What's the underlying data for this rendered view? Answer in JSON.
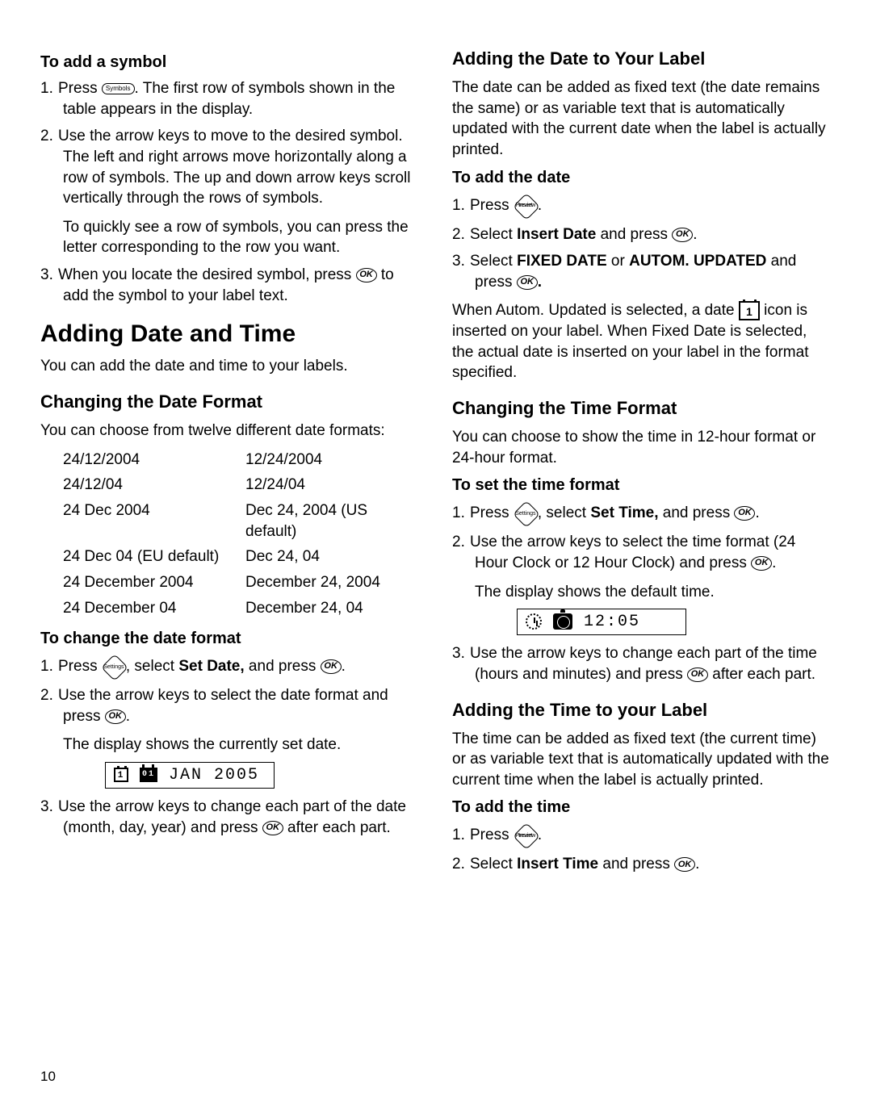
{
  "left": {
    "symbol_heading": "To add a symbol",
    "symbol_steps": [
      {
        "n": "1.",
        "pre": "Press ",
        "btn": "Symbols",
        "post": ". The first row of symbols shown in the table appears in the display."
      },
      {
        "n": "2.",
        "text": "Use the arrow keys to move to the desired symbol. The left and right arrows move horizontally along a row of symbols. The up and down arrow keys scroll vertically through the rows of symbols."
      },
      {
        "indent": "To quickly see a row of symbols, you can press the letter corresponding to the row you want."
      },
      {
        "n": "3.",
        "pre": "When you locate the desired symbol, press ",
        "ok": true,
        "post": " to add the symbol to your label text."
      }
    ],
    "adding_dt_heading": "Adding Date and Time",
    "adding_dt_intro": "You can add the date and time to your labels.",
    "change_df_heading": "Changing the Date Format",
    "change_df_intro": "You can choose from twelve different date formats:",
    "date_formats": [
      [
        "24/12/2004",
        "12/24/2004"
      ],
      [
        "24/12/04",
        "12/24/04"
      ],
      [
        "24 Dec 2004",
        "Dec 24, 2004 (US default)"
      ],
      [
        "24 Dec 04 (EU default)",
        "Dec 24, 04"
      ],
      [
        "24 December 2004",
        "December 24, 2004"
      ],
      [
        "24 December 04",
        "December 24, 04"
      ]
    ],
    "change_df_sub": "To change the date format",
    "change_df_steps": {
      "s1_pre": "Press ",
      "s1_btn": "Settings",
      "s1_mid": ", select ",
      "s1_bold": "Set Date,",
      "s1_post": " and press ",
      "s2_pre": "Use the arrow keys to select the date format and press ",
      "s2_after": "The display shows the currently set date.",
      "lcd": "JAN 2005",
      "lcd_d1": "1",
      "lcd_d2": "01",
      "s3_pre": "Use the arrow keys to change each part of the date (month, day, year) and press ",
      "s3_post": " after each part."
    }
  },
  "right": {
    "add_date_label_heading": "Adding the Date to Your Label",
    "add_date_label_intro": "The date can be added as fixed text (the date remains the same) or as variable text that is automatically updated with the current date when the label is actually printed.",
    "add_date_sub": "To add the date",
    "add_date_steps": {
      "s1_pre": "Press ",
      "s1_btn_l1": "Preview",
      "s1_btn_l2": "Insert",
      "s2_pre": "Select ",
      "s2_bold": "Insert Date",
      "s2_mid": " and press ",
      "s3_pre": "Select ",
      "s3_b1": "FIXED DATE",
      "s3_or": " or ",
      "s3_b2": "AUTOM. UPDATED",
      "s3_post": " and press "
    },
    "autom_pre": "When Autom. Updated is selected, a date ",
    "autom_icon": "1",
    "autom_post": " icon is inserted on your label. When Fixed Date is selected, the actual date is inserted on your label in the format specified.",
    "change_tf_heading": "Changing the Time Format",
    "change_tf_intro": "You can choose to show the time in 12-hour format or 24-hour format.",
    "set_tf_sub": "To set the time format",
    "set_tf_steps": {
      "s1_pre": "Press ",
      "s1_btn": "Settings",
      "s1_mid": ", select ",
      "s1_bold": "Set Time,",
      "s1_post": " and press ",
      "s2_pre": "Use the arrow keys to select the time format (24 Hour Clock or 12 Hour Clock) and press ",
      "s2_after": "The display shows the default time.",
      "lcd": "12:05",
      "s3_pre": "Use the arrow keys to change each part of the time (hours and minutes) and press ",
      "s3_post": " after each part."
    },
    "add_time_label_heading": "Adding the Time to your Label",
    "add_time_label_intro": "The time can be added as fixed text (the current time) or as variable text that is automatically updated with the current time when the label is actually printed.",
    "add_time_sub": "To add the time",
    "add_time_steps": {
      "s1_pre": "Press ",
      "s1_btn_l1": "Preview",
      "s1_btn_l2": "Insert",
      "s2_pre": "Select ",
      "s2_bold": "Insert Time",
      "s2_mid": " and press "
    }
  },
  "page_number": "10",
  "ok_label": "OK"
}
